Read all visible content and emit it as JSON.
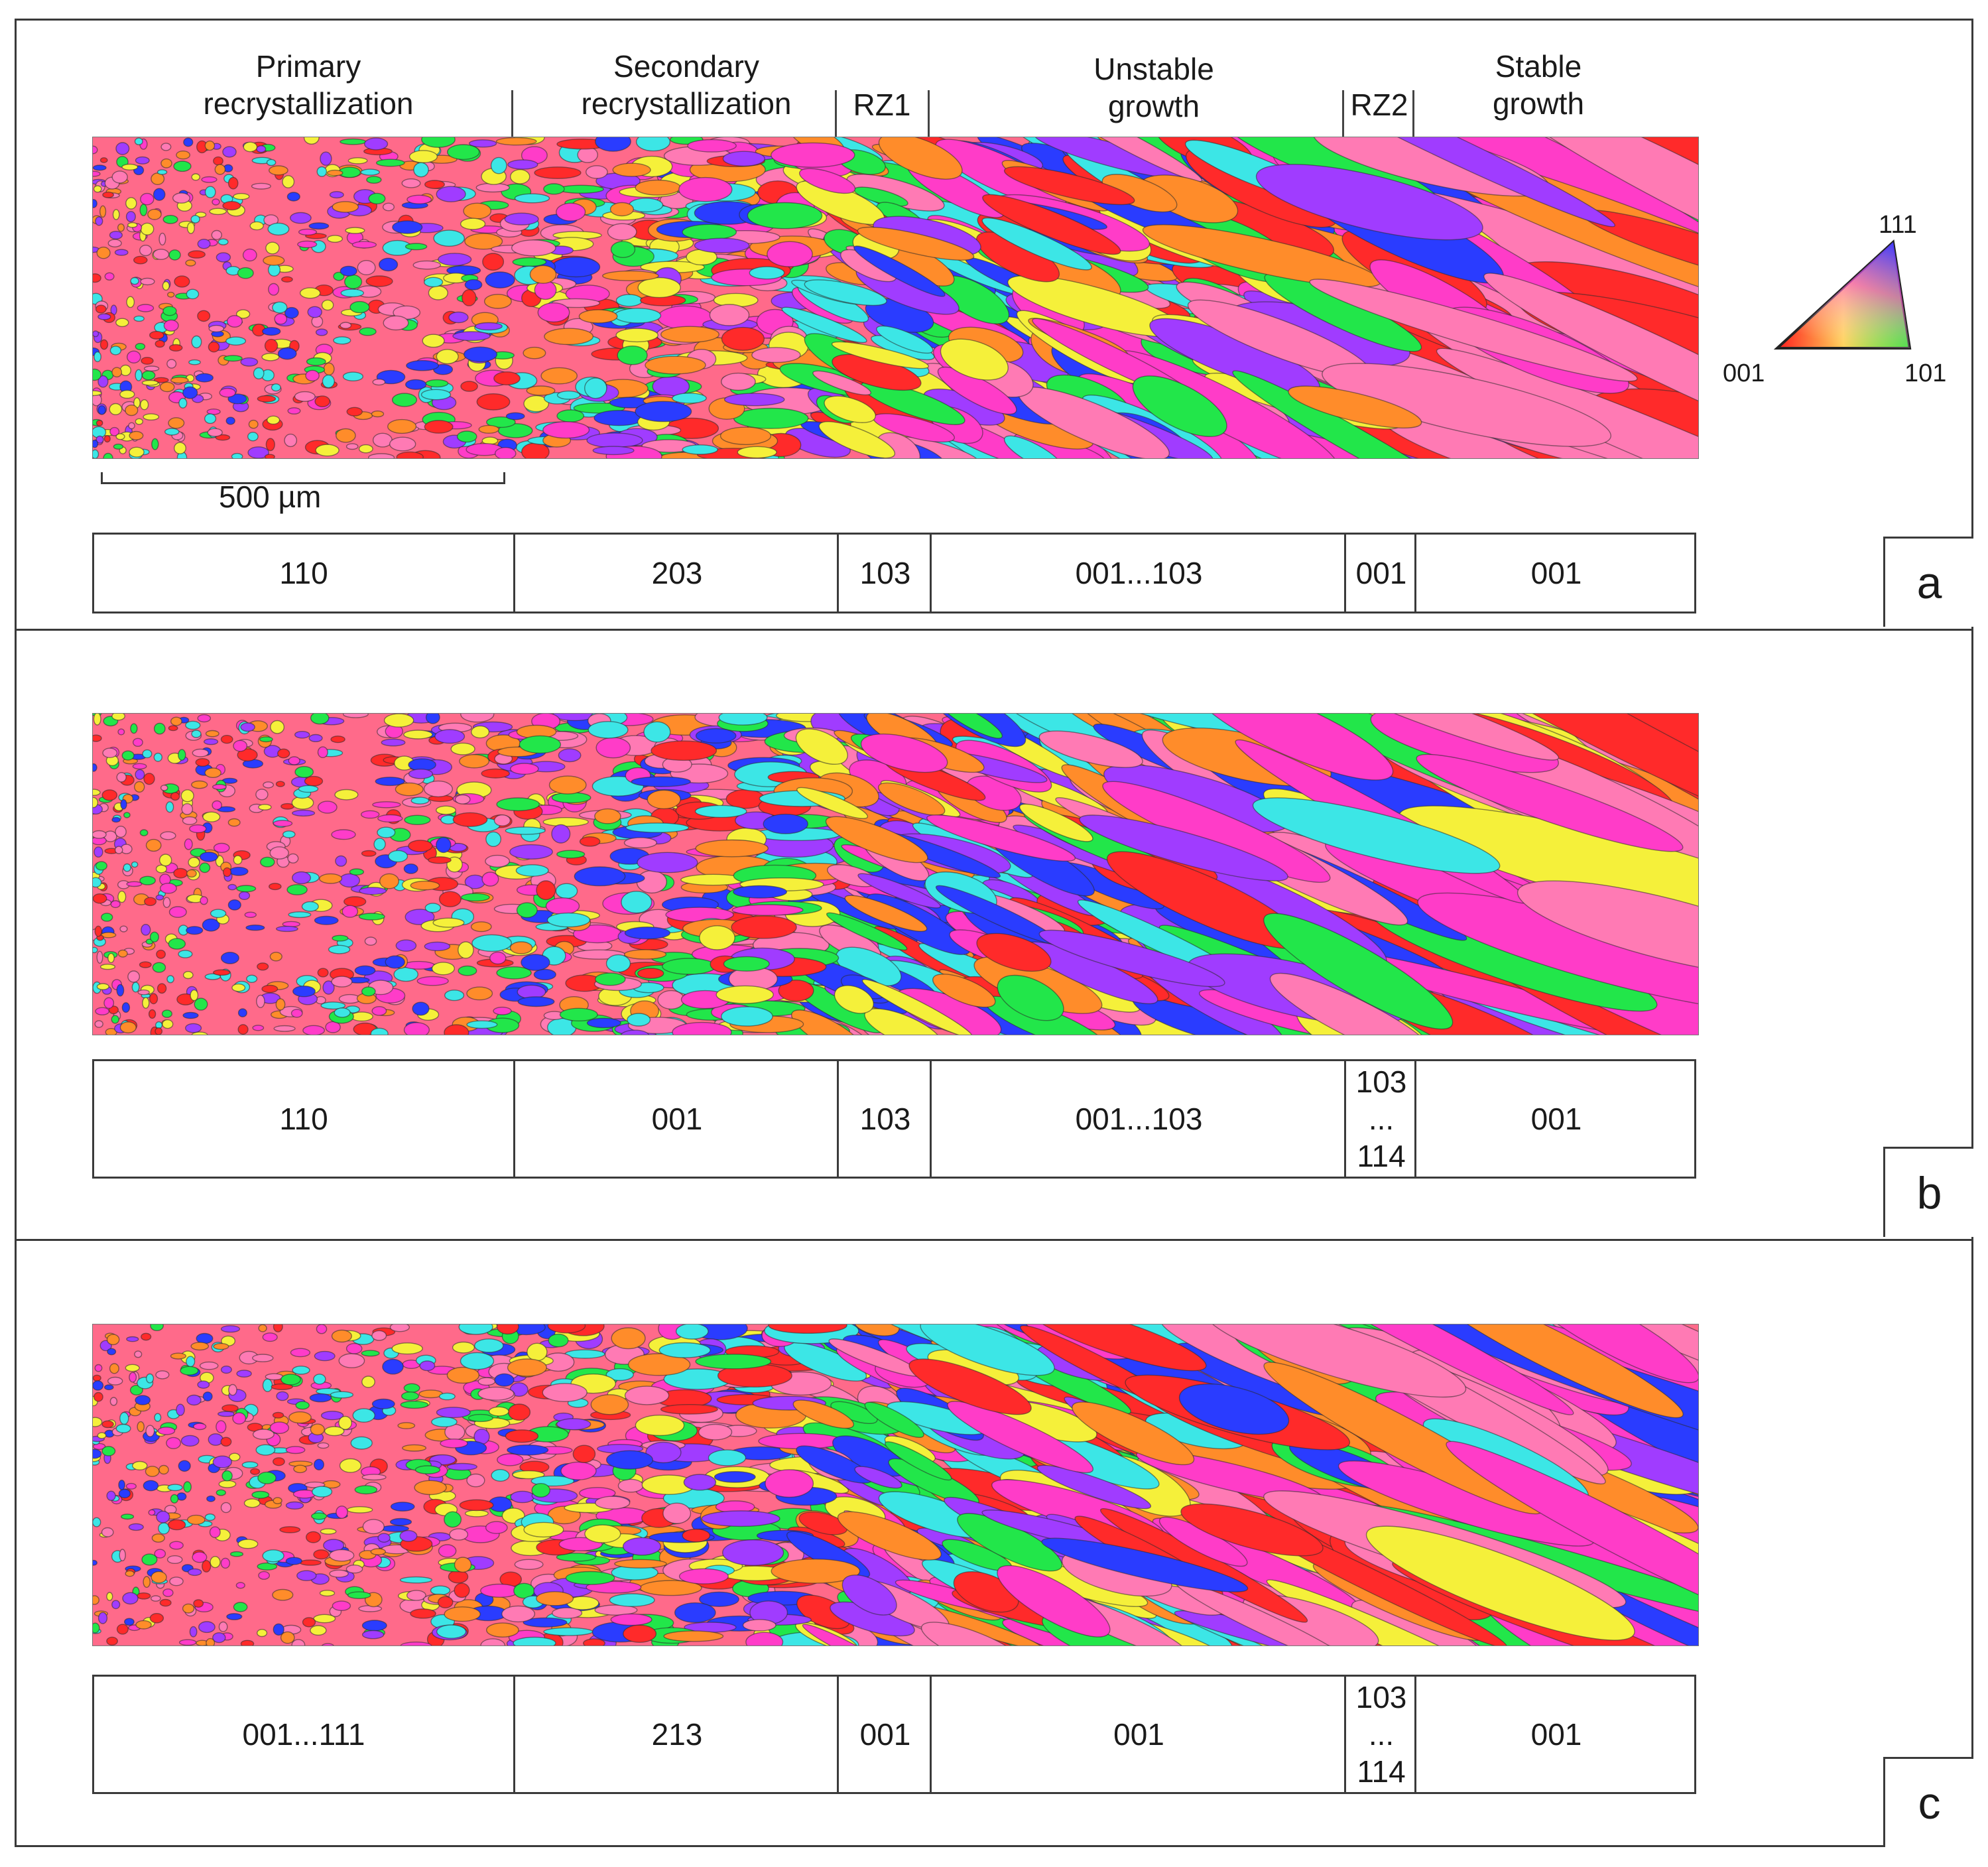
{
  "phases": [
    {
      "id": "primary",
      "label": "Primary\nrecrystallization"
    },
    {
      "id": "secondary",
      "label": "Secondary\nrecrystallization"
    },
    {
      "id": "rz1",
      "label": "RZ1"
    },
    {
      "id": "unstable",
      "label": "Unstable\ngrowth"
    },
    {
      "id": "rz2",
      "label": "RZ2"
    },
    {
      "id": "stable",
      "label": "Stable\ngrowth"
    }
  ],
  "scale_bar": {
    "label": "500 µm"
  },
  "ipf_legend": {
    "top": "111",
    "left": "001",
    "right": "101"
  },
  "panels": [
    {
      "letter": "a",
      "textures": [
        "110",
        "203",
        "103",
        "001...103",
        "001",
        "001"
      ]
    },
    {
      "letter": "b",
      "textures": [
        "110",
        "001",
        "103",
        "001...103",
        "103\n...\n114",
        "001"
      ]
    },
    {
      "letter": "c",
      "textures": [
        "001...111",
        "213",
        "001",
        "001",
        "103\n...\n114",
        "001"
      ]
    }
  ],
  "colors": {
    "red": "#ff2a2a",
    "green": "#22e64a",
    "blue": "#2a3cff",
    "magenta": "#ff3cc8",
    "yellow": "#f5f03a",
    "cyan": "#3ce6e6",
    "orange": "#ff8c2a",
    "purple": "#a03cff",
    "pink": "#ff7ab4"
  }
}
